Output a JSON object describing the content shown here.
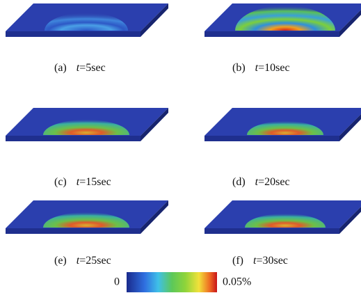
{
  "panels": [
    {
      "label": "(a)",
      "variable": "t",
      "value": "=5sec"
    },
    {
      "label": "(b)",
      "variable": "t",
      "value": "=10sec"
    },
    {
      "label": "(c)",
      "variable": "t",
      "value": "=15sec"
    },
    {
      "label": "(d)",
      "variable": "t",
      "value": "=20sec"
    },
    {
      "label": "(e)",
      "variable": "t",
      "value": "=25sec"
    },
    {
      "label": "(f)",
      "variable": "t",
      "value": "=30sec"
    }
  ],
  "colorbar": {
    "min_label": "0",
    "max_label": "0.05%"
  }
}
